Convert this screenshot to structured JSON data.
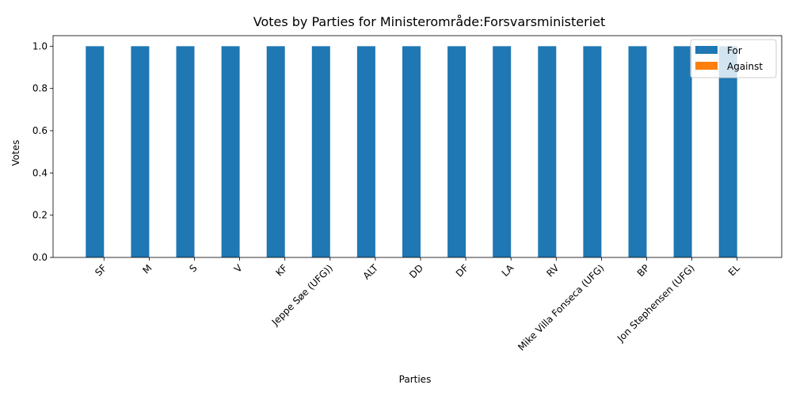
{
  "chart_data": {
    "type": "bar",
    "title": "Votes by Parties for Ministerområde:Forsvarsministeriet",
    "xlabel": "Parties",
    "ylabel": "Votes",
    "ylim": [
      0,
      1.05
    ],
    "yticks": [
      "0.0",
      "0.2",
      "0.4",
      "0.6",
      "0.8",
      "1.0"
    ],
    "categories": [
      "SF",
      "M",
      "S",
      "V",
      "KF",
      "Jeppe Søe (UFG))",
      "ALT",
      "DD",
      "DF",
      "LA",
      "RV",
      "Mike Villa Fonseca (UFG)",
      "BP",
      "Jon Stephensen (UFG)",
      "EL"
    ],
    "series": [
      {
        "name": "For",
        "color": "#1f77b4",
        "values": [
          1,
          1,
          1,
          1,
          1,
          1,
          1,
          1,
          1,
          1,
          1,
          1,
          1,
          1,
          1
        ]
      },
      {
        "name": "Against",
        "color": "#ff7f0e",
        "values": [
          0,
          0,
          0,
          0,
          0,
          0,
          0,
          0,
          0,
          0,
          0,
          0,
          0,
          0,
          0
        ]
      }
    ],
    "legend_position": "top-right",
    "grid": false
  }
}
